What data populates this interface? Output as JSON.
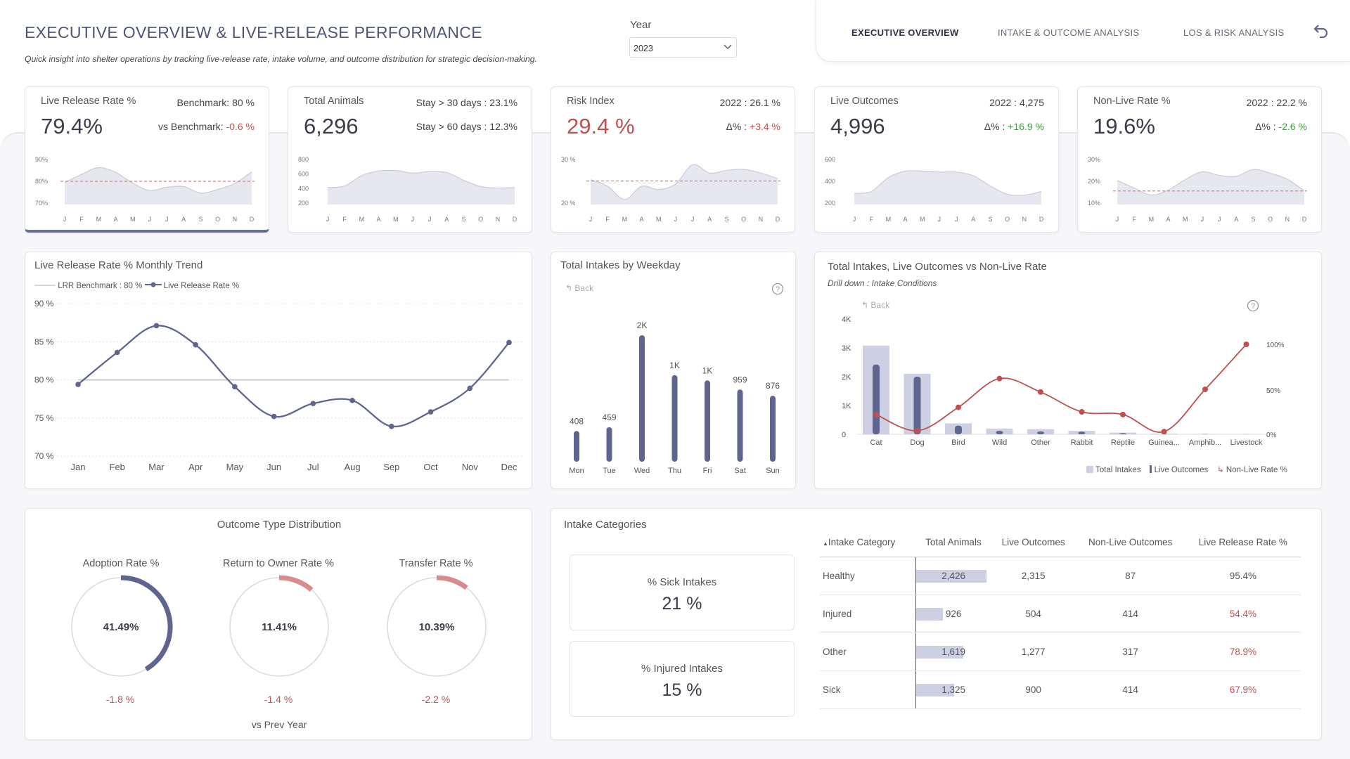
{
  "header": {
    "title": "EXECUTIVE OVERVIEW & LIVE-RELEASE PERFORMANCE",
    "subtitle": "Quick insight into shelter operations by tracking live-release rate, intake volume, and outcome distribution for strategic decision-making.",
    "year_label": "Year",
    "year_value": "2023"
  },
  "nav": {
    "tabs": [
      "EXECUTIVE OVERVIEW",
      "INTAKE & OUTCOME ANALYSIS",
      "LOS & RISK ANALYSIS"
    ],
    "active": "EXECUTIVE OVERVIEW",
    "back_icon": "back-arrow-icon"
  },
  "colors": {
    "accent": "#6a7197",
    "negative": "#c0504d",
    "positive": "#3ba03b",
    "area": "#e6e7ef",
    "benchmark": "#e07b7b"
  },
  "kpis": [
    {
      "label": "Live Release Rate %",
      "value": "79.4%",
      "r1_label": "Benchmark: ",
      "r1_value": "80 %",
      "r2_label": "vs Benchmark: ",
      "r2_value": "-0.6 %",
      "yticks": [
        "90%",
        "80%",
        "70%"
      ],
      "ylim": [
        68,
        92
      ],
      "bench": 80,
      "series": [
        79.4,
        83.6,
        87.1,
        84.6,
        79.1,
        75.2,
        76.9,
        77.3,
        73.9,
        75.8,
        78.9,
        84.9
      ]
    },
    {
      "label": "Total Animals",
      "value": "6,296",
      "r1_label": "Stay > 30 days : ",
      "r1_value": "23.1%",
      "r2_label": "Stay > 60 days : ",
      "r2_value": "12.3%",
      "yticks": [
        "800",
        "600",
        "400",
        "200"
      ],
      "ylim": [
        0,
        900
      ],
      "bench": null,
      "series": [
        330,
        360,
        560,
        650,
        660,
        610,
        640,
        620,
        470,
        350,
        320,
        330
      ]
    },
    {
      "label": "Risk Index",
      "value": "29.4 %",
      "r1_label": "2022 : ",
      "r1_value": "26.1 %",
      "r2_label": "Δ% : ",
      "r2_value": "+3.4 %",
      "yticks": [
        "30 %",
        "20 %"
      ],
      "ylim": [
        19,
        33
      ],
      "bench": 26.1,
      "series": [
        26.5,
        24.5,
        20.5,
        24.5,
        23.5,
        25.2,
        31,
        28.5,
        29.3,
        29.6,
        28.5,
        26.8
      ]
    },
    {
      "label": "Live Outcomes",
      "value": "4,996",
      "r1_label": "2022 : ",
      "r1_value": "4,275",
      "r2_label": "Δ% : ",
      "r2_value": "+16.9 %",
      "yticks": [
        "600",
        "400",
        "200"
      ],
      "ylim": [
        150,
        650
      ],
      "bench": null,
      "series": [
        270,
        290,
        440,
        510,
        510,
        500,
        500,
        460,
        350,
        260,
        250,
        290
      ]
    },
    {
      "label": "Non-Live Rate %",
      "value": "19.6%",
      "r1_label": "2022 : ",
      "r1_value": "22.2 %",
      "r2_label": "Δ% : ",
      "r2_value": "-2.6 %",
      "yticks": [
        "30%",
        "20%",
        "10%"
      ],
      "ylim": [
        8,
        32
      ],
      "bench": 15,
      "series": [
        20.5,
        16.5,
        12.9,
        15.5,
        20.9,
        24.9,
        23.1,
        22.6,
        26.1,
        24.2,
        21.1,
        15.1
      ]
    }
  ],
  "month_initials": [
    "J",
    "F",
    "M",
    "A",
    "M",
    "J",
    "J",
    "A",
    "S",
    "O",
    "N",
    "D"
  ],
  "lrr_trend": {
    "title": "Live Release Rate % Monthly Trend",
    "legend_benchmark": "LRR Benchmark : 80 %",
    "legend_series": "Live Release Rate %"
  },
  "weekday": {
    "title": "Total Intakes by Weekday",
    "back": "Back"
  },
  "combo": {
    "title": "Total Intakes, Live Outcomes vs Non-Live Rate",
    "drill": "Drill down : Intake Conditions",
    "back": "Back",
    "legend": [
      "Total Intakes",
      "Live Outcomes",
      "Non-Live Rate %"
    ]
  },
  "chart_data": [
    {
      "type": "line",
      "title": "Live Release Rate % Monthly Trend",
      "categories": [
        "Jan",
        "Feb",
        "Mar",
        "Apr",
        "May",
        "Jun",
        "Jul",
        "Aug",
        "Sep",
        "Oct",
        "Nov",
        "Dec"
      ],
      "series": [
        {
          "name": "Live Release Rate %",
          "values": [
            79.4,
            83.6,
            87.1,
            84.6,
            79.1,
            75.2,
            76.9,
            77.3,
            73.9,
            75.8,
            78.9,
            84.9
          ]
        },
        {
          "name": "LRR Benchmark : 80 %",
          "values": [
            80,
            80,
            80,
            80,
            80,
            80,
            80,
            80,
            80,
            80,
            80,
            80
          ]
        }
      ],
      "yticks": [
        "90 %",
        "85 %",
        "80 %",
        "75 %",
        "70 %"
      ],
      "ylim": [
        70,
        90
      ]
    },
    {
      "type": "bar",
      "title": "Total Intakes by Weekday",
      "categories": [
        "Mon",
        "Tue",
        "Wed",
        "Thu",
        "Fri",
        "Sat",
        "Sun"
      ],
      "values": [
        408,
        459,
        1680,
        1150,
        1080,
        959,
        876
      ],
      "labels": [
        "408",
        "459",
        "2K",
        "1K",
        "1K",
        "959",
        "876"
      ]
    },
    {
      "type": "bar",
      "title": "Total Intakes, Live Outcomes vs Non-Live Rate",
      "categories": [
        "Cat",
        "Dog",
        "Bird",
        "Wild",
        "Other",
        "Rabbit",
        "Reptile",
        "Guinea...",
        "Amphib...",
        "Livestock"
      ],
      "series": [
        {
          "name": "Total Intakes",
          "values": [
            3080,
            2100,
            380,
            200,
            180,
            120,
            60,
            25,
            15,
            8
          ]
        },
        {
          "name": "Live Outcomes",
          "values": [
            2420,
            2000,
            300,
            120,
            100,
            90,
            40,
            15,
            8,
            3
          ]
        },
        {
          "name": "Non-Live Rate %",
          "values": [
            22,
            4,
            30,
            62,
            47,
            25,
            22,
            3,
            50,
            100
          ]
        }
      ],
      "yticks": [
        "4K",
        "3K",
        "2K",
        "1K",
        "0"
      ],
      "y2ticks": [
        "100%",
        "50%",
        "0%"
      ]
    }
  ],
  "outcomes": {
    "title": "Outcome Type Distribution",
    "footer": "vs Prev Year",
    "gauges": [
      {
        "label": "Adoption Rate %",
        "value": "41.49%",
        "pct": 41.49,
        "delta": "-1.8 %",
        "color": "#5e6690"
      },
      {
        "label": "Return to Owner Rate %",
        "value": "11.41%",
        "pct": 11.41,
        "delta": "-1.4 %",
        "color": "#d98a8a"
      },
      {
        "label": "Transfer Rate %",
        "value": "10.39%",
        "pct": 10.39,
        "delta": "-2.2 %",
        "color": "#d98a8a"
      }
    ]
  },
  "intake_categories": {
    "title": "Intake Categories",
    "sick_label": "% Sick Intakes",
    "sick_value": "21 %",
    "injured_label": "% Injured Intakes",
    "injured_value": "15 %",
    "columns": [
      "Intake Category",
      "Total Animals",
      "Live Outcomes",
      "Non-Live Outcomes",
      "Live Release Rate %"
    ],
    "rows": [
      {
        "cat": "Healthy",
        "total": "2,426",
        "total_n": 2426,
        "live": "2,315",
        "nonlive": "87",
        "lrr": "95.4%"
      },
      {
        "cat": "Injured",
        "total": "926",
        "total_n": 926,
        "live": "504",
        "nonlive": "414",
        "lrr": "54.4%"
      },
      {
        "cat": "Other",
        "total": "1,619",
        "total_n": 1619,
        "live": "1,277",
        "nonlive": "317",
        "lrr": "78.9%"
      },
      {
        "cat": "Sick",
        "total": "1,325",
        "total_n": 1325,
        "live": "900",
        "nonlive": "414",
        "lrr": "67.9%"
      }
    ]
  }
}
